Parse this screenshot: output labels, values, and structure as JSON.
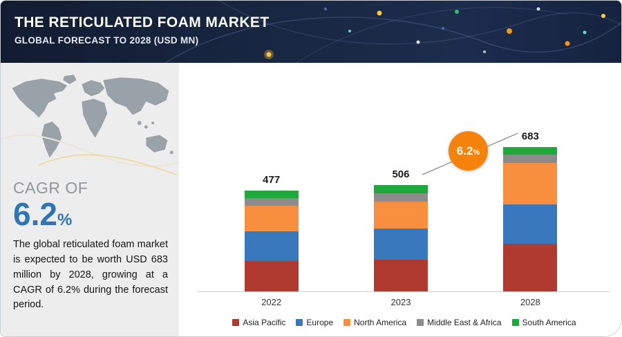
{
  "header": {
    "title": "THE RETICULATED FOAM MARKET",
    "subtitle": "GLOBAL FORECAST TO 2028 (USD MN)"
  },
  "sidebar": {
    "cagr_label": "CAGR OF",
    "cagr_value": "6.2",
    "cagr_unit": "%",
    "description": "The global reticulated foam market is expected to be worth USD 683 million by 2028, growing at a CAGR of 6.2% during the forecast period."
  },
  "badge": {
    "value": "6.2",
    "unit": "%"
  },
  "colors": {
    "header_bg": "#16213a",
    "accent_orange": "#f5820d",
    "cagr_blue": "#2e75b6",
    "sidebar_gray": "#ededed"
  },
  "chart_data": {
    "type": "bar",
    "stacked": true,
    "title": "",
    "xlabel": "",
    "ylabel": "",
    "categories": [
      "2022",
      "2023",
      "2028"
    ],
    "totals": [
      477,
      506,
      683
    ],
    "series": [
      {
        "name": "Asia Pacific",
        "color": "#b03a30",
        "values": [
          146,
          154,
          228
        ]
      },
      {
        "name": "Europe",
        "color": "#3a78bd",
        "values": [
          140,
          147,
          185
        ]
      },
      {
        "name": "North America",
        "color": "#f78f3f",
        "values": [
          121,
          128,
          195
        ]
      },
      {
        "name": "Middle East & Africa",
        "color": "#8c8c8c",
        "values": [
          35,
          38,
          39
        ]
      },
      {
        "name": "South America",
        "color": "#1fa83c",
        "values": [
          35,
          39,
          36
        ]
      }
    ],
    "ylim": [
      0,
      700
    ],
    "grid": false,
    "legend_position": "bottom",
    "annotations": [
      {
        "text": "6.2%",
        "type": "cagr-badge",
        "near_category": "2028"
      }
    ]
  }
}
